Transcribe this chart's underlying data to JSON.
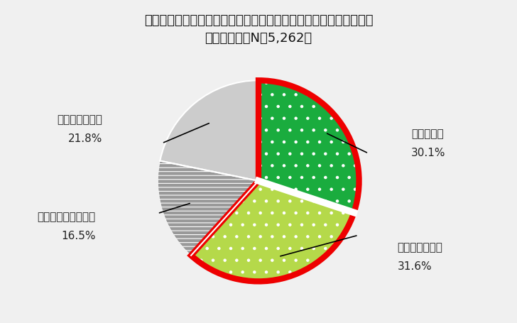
{
  "title_line1": "新型コロナウイルス感染症流行以前と比較して運動不足になったか",
  "title_line2": "（単一回答：N＝5,262）",
  "slices": [
    {
      "label": "あてはまる",
      "pct_text": "30.1%",
      "value": 30.1,
      "color": "#1aac3e",
      "hatch": "..",
      "red_border": true
    },
    {
      "label": "ややあてはまる",
      "pct_text": "31.6%",
      "value": 31.6,
      "color": "#b5d94a",
      "hatch": "..",
      "red_border": true
    },
    {
      "label": "ややあてはまらない",
      "pct_text": "16.5%",
      "value": 16.5,
      "color": "#999999",
      "hatch": "--",
      "red_border": false
    },
    {
      "label": "あてはまらない",
      "pct_text": "21.8%",
      "value": 21.8,
      "color": "#cccccc",
      "hatch": "",
      "red_border": false
    }
  ],
  "background_color": "#f0f0f0",
  "red_border_color": "#ee0000",
  "red_border_linewidth": 6,
  "start_angle": 90,
  "title_fontsize": 13,
  "label_fontsize": 11
}
